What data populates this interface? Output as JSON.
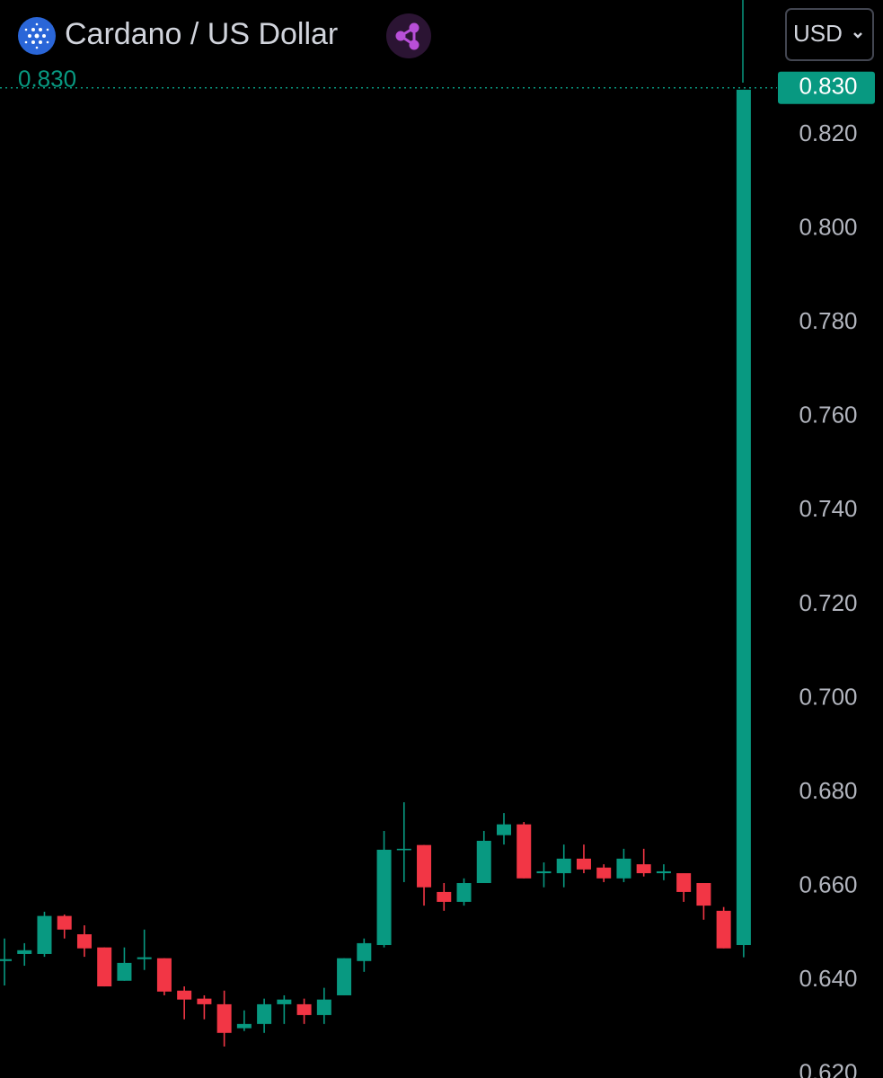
{
  "chart_data": {
    "type": "candlestick",
    "title": "Cardano / US Dollar",
    "currency": "USD",
    "last_price": {
      "value": 0.83,
      "label": "0.830"
    },
    "up_color": "#089981",
    "down_color": "#f23645",
    "ylim": [
      0.6192,
      0.8487
    ],
    "yticks": [
      {
        "value": 0.62,
        "label": "0.620"
      },
      {
        "value": 0.64,
        "label": "0.640"
      },
      {
        "value": 0.66,
        "label": "0.660"
      },
      {
        "value": 0.68,
        "label": "0.680"
      },
      {
        "value": 0.7,
        "label": "0.700"
      },
      {
        "value": 0.72,
        "label": "0.720"
      },
      {
        "value": 0.74,
        "label": "0.740"
      },
      {
        "value": 0.76,
        "label": "0.760"
      },
      {
        "value": 0.78,
        "label": "0.780"
      },
      {
        "value": 0.8,
        "label": "0.800"
      },
      {
        "value": 0.82,
        "label": "0.820"
      }
    ],
    "open": [
      0.6441,
      0.6456,
      0.6456,
      0.6537,
      0.6498,
      0.647,
      0.6399,
      0.6445,
      0.6447,
      0.6378,
      0.6361,
      0.6349,
      0.6298,
      0.6307,
      0.6349,
      0.6349,
      0.6326,
      0.6368,
      0.6441,
      0.6475,
      0.6678,
      0.6688,
      0.6588,
      0.6567,
      0.6607,
      0.6709,
      0.6732,
      0.6628,
      0.6628,
      0.6659,
      0.664,
      0.6617,
      0.6647,
      0.6628,
      0.6628,
      0.6607,
      0.6548,
      0.6475
    ],
    "high": [
      0.6489,
      0.6479,
      0.6546,
      0.654,
      0.6517,
      0.647,
      0.647,
      0.6508,
      0.6447,
      0.6387,
      0.6368,
      0.6378,
      0.6336,
      0.6361,
      0.6368,
      0.6361,
      0.6384,
      0.6447,
      0.6489,
      0.6718,
      0.6779,
      0.6688,
      0.6607,
      0.6617,
      0.6718,
      0.6756,
      0.6737,
      0.6651,
      0.6689,
      0.6689,
      0.6647,
      0.668,
      0.668,
      0.6647,
      0.6628,
      0.6607,
      0.6556,
      0.8296
    ],
    "low": [
      0.6389,
      0.6431,
      0.645,
      0.6489,
      0.645,
      0.6387,
      0.6399,
      0.6422,
      0.6368,
      0.6317,
      0.6317,
      0.6259,
      0.6292,
      0.6288,
      0.6307,
      0.6307,
      0.6307,
      0.6368,
      0.6418,
      0.647,
      0.6609,
      0.6559,
      0.6548,
      0.6559,
      0.6607,
      0.6689,
      0.6617,
      0.6598,
      0.6598,
      0.6628,
      0.6609,
      0.6609,
      0.6621,
      0.6613,
      0.6567,
      0.6529,
      0.6468,
      0.6449
    ],
    "close": [
      0.6445,
      0.6464,
      0.6537,
      0.6508,
      0.6468,
      0.6387,
      0.6437,
      0.6449,
      0.6376,
      0.6359,
      0.6349,
      0.6288,
      0.6307,
      0.6349,
      0.6359,
      0.6326,
      0.6359,
      0.6447,
      0.6479,
      0.6678,
      0.668,
      0.6598,
      0.6567,
      0.6607,
      0.6697,
      0.6732,
      0.6617,
      0.6632,
      0.6659,
      0.6636,
      0.6617,
      0.6659,
      0.6628,
      0.6632,
      0.6588,
      0.6559,
      0.6468,
      0.8296
    ]
  }
}
